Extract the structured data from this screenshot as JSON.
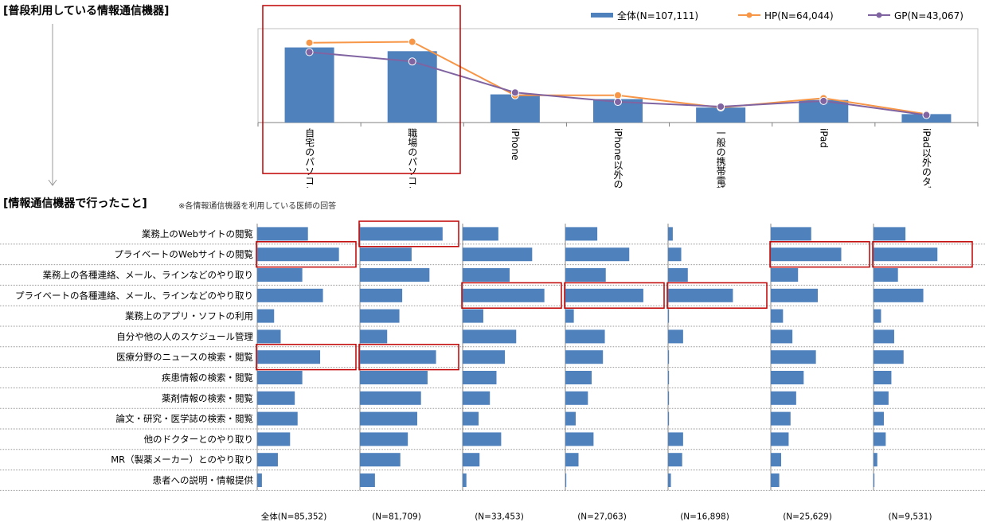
{
  "header_top": "[普段利用している情報通信機器]",
  "header_bottom": "[情報通信機器で行ったこと]",
  "note": "※各情報通信機器を利用している医師の回答",
  "colors": {
    "bar": "#4F81BD",
    "hp": "#F79646",
    "gp": "#8064A2",
    "highlight": "#C00000"
  },
  "chart_data": [
    {
      "type": "bar",
      "legend_position": "top-right",
      "categories": [
        "自宅のパソコン",
        "職場のパソコン",
        "iPhone",
        "iPhone以外のスマートフォン",
        "一般の携帯電話",
        "iPad",
        "iPad以外のタブレット端末"
      ],
      "ylim": [
        0,
        100
      ],
      "series": [
        {
          "name": "全体(N=107,111)",
          "kind": "bar",
          "values": [
            80,
            76,
            30,
            25,
            16,
            24,
            9
          ]
        },
        {
          "name": "HP(N=64,044)",
          "kind": "line",
          "values": [
            85,
            86,
            29,
            29,
            16,
            26,
            9
          ]
        },
        {
          "name": "GP(N=43,067)",
          "kind": "line",
          "values": [
            75,
            65,
            32,
            22,
            17,
            23,
            8
          ]
        }
      ],
      "highlighted_categories": [
        "自宅のパソコン",
        "職場のパソコン"
      ]
    },
    {
      "type": "bar",
      "orientation": "horizontal",
      "categories": [
        "業務上のWebサイトの閲覧",
        "プライベートのWebサイトの閲覧",
        "業務上の各種連絡、メール、ラインなどのやり取り",
        "プライベートの各種連絡、メール、ラインなどのやり取り",
        "業務上のアプリ・ソフトの利用",
        "自分や他の人のスケジュール管理",
        "医療分野のニュースの検索・閲覧",
        "疾患情報の検索・閲覧",
        "薬剤情報の検索・閲覧",
        "論文・研究・医学誌の検索・閲覧",
        "他のドクターとのやり取り",
        "MR（製薬メーカー）とのやり取り",
        "患者への説明・情報提供"
      ],
      "xlim": [
        0,
        100
      ],
      "panels": [
        {
          "label": "全体(N=85,352)",
          "values": [
            54,
            87,
            48,
            70,
            18,
            25,
            67,
            48,
            40,
            43,
            35,
            22,
            5
          ],
          "highlight": [
            1,
            6
          ]
        },
        {
          "label": "(N=81,709)",
          "values": [
            88,
            55,
            74,
            45,
            42,
            29,
            81,
            72,
            65,
            61,
            51,
            43,
            16
          ],
          "highlight": [
            0,
            6
          ]
        },
        {
          "label": "(N=33,453)",
          "values": [
            38,
            74,
            50,
            87,
            22,
            57,
            45,
            36,
            29,
            17,
            41,
            18,
            4
          ],
          "highlight": [
            3
          ]
        },
        {
          "label": "(N=27,063)",
          "values": [
            34,
            68,
            43,
            83,
            9,
            42,
            40,
            28,
            24,
            11,
            30,
            14,
            1
          ],
          "highlight": [
            3
          ]
        },
        {
          "label": "(N=16,898)",
          "values": [
            5,
            14,
            21,
            69,
            1,
            16,
            1,
            1,
            1,
            1,
            16,
            15,
            3
          ],
          "highlight": [
            3
          ]
        },
        {
          "label": "(N=25,629)",
          "values": [
            43,
            75,
            29,
            50,
            13,
            23,
            48,
            35,
            27,
            21,
            19,
            11,
            9
          ],
          "highlight": [
            1
          ]
        },
        {
          "label": "(N=9,531)",
          "values": [
            34,
            68,
            26,
            53,
            8,
            22,
            32,
            19,
            16,
            11,
            13,
            4,
            1
          ],
          "highlight": [
            1
          ]
        }
      ]
    }
  ]
}
